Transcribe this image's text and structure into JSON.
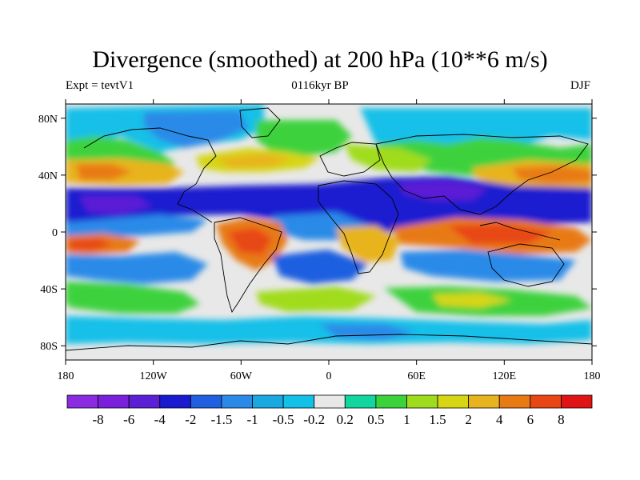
{
  "title": "Divergence (smoothed) at 200 hPa (10**6 m/s)",
  "subtitle_left": "Expt = tevtV1",
  "subtitle_center": "0116kyr BP",
  "subtitle_right": "DJF",
  "lat_ticks": [
    {
      "label": "80N",
      "lat": 80
    },
    {
      "label": "40N",
      "lat": 40
    },
    {
      "label": "0",
      "lat": 0
    },
    {
      "label": "40S",
      "lat": -40
    },
    {
      "label": "80S",
      "lat": -80
    }
  ],
  "lon_ticks": [
    {
      "label": "180",
      "lon": -180
    },
    {
      "label": "120W",
      "lon": -120
    },
    {
      "label": "60W",
      "lon": -60
    },
    {
      "label": "0",
      "lon": 0
    },
    {
      "label": "60E",
      "lon": 60
    },
    {
      "label": "120E",
      "lon": 120
    },
    {
      "label": "180",
      "lon": 180
    }
  ],
  "colorbar": {
    "colors": [
      "#8a2be2",
      "#7a1fdc",
      "#5b1fd6",
      "#1a1ad0",
      "#1f5fe0",
      "#2b8ae8",
      "#1aa8e0",
      "#12c0e8",
      "#e8e8e8",
      "#12d6a0",
      "#3cd23c",
      "#a0dc1e",
      "#d6d614",
      "#e8b41e",
      "#e87a14",
      "#e84614",
      "#e01414"
    ],
    "labels": [
      "-8",
      "-6",
      "-4",
      "-2",
      "-1.5",
      "-1",
      "-0.5",
      "-0.2",
      "0.2",
      "0.5",
      "1",
      "1.5",
      "2",
      "4",
      "6",
      "8"
    ]
  },
  "map_colors": {
    "background": "#e8e8e8",
    "coast": "#000000"
  }
}
